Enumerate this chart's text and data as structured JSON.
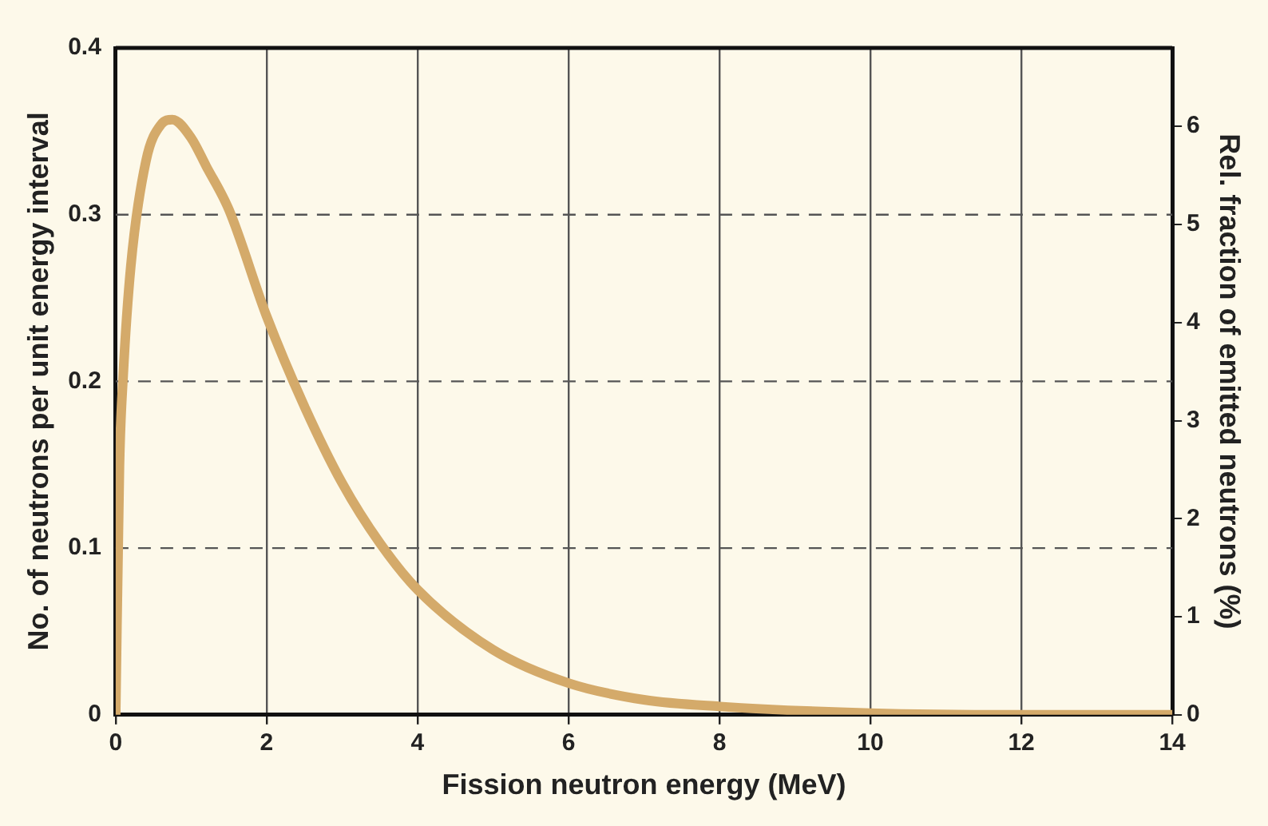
{
  "chart_data": {
    "type": "line",
    "xlabel": "Fission neutron energy (MeV)",
    "ylabel": "No. of neutrons per unit energy interval",
    "y2label": "Rel. fraction of emitted neutrons (%)",
    "x": [
      0,
      0.05,
      0.1,
      0.2,
      0.4,
      0.6,
      0.75,
      1.0,
      1.2,
      1.5,
      2.0,
      2.5,
      3.0,
      3.5,
      4.0,
      5.0,
      6.0,
      7.0,
      8.0,
      10.0,
      12.0,
      14.0
    ],
    "series": [
      {
        "color": "#d4aa6a",
        "values": [
          0,
          0.149,
          0.204,
          0.269,
          0.332,
          0.354,
          0.357,
          0.346,
          0.329,
          0.303,
          0.239,
          0.185,
          0.139,
          0.103,
          0.075,
          0.039,
          0.019,
          0.009,
          0.005,
          0.001,
          0,
          0
        ]
      }
    ],
    "xlim": [
      0,
      14
    ],
    "xticks": [
      0,
      2,
      4,
      6,
      8,
      10,
      12,
      14
    ],
    "ylim": [
      0,
      0.4
    ],
    "yticks": [
      0,
      0.1,
      0.2,
      0.3,
      0.4
    ],
    "y2lim": [
      0,
      6.8
    ],
    "y2ticks": [
      0,
      1,
      2,
      3,
      4,
      5,
      6
    ],
    "grid": true,
    "legend": false,
    "marker": "none",
    "line_style": "solid"
  }
}
